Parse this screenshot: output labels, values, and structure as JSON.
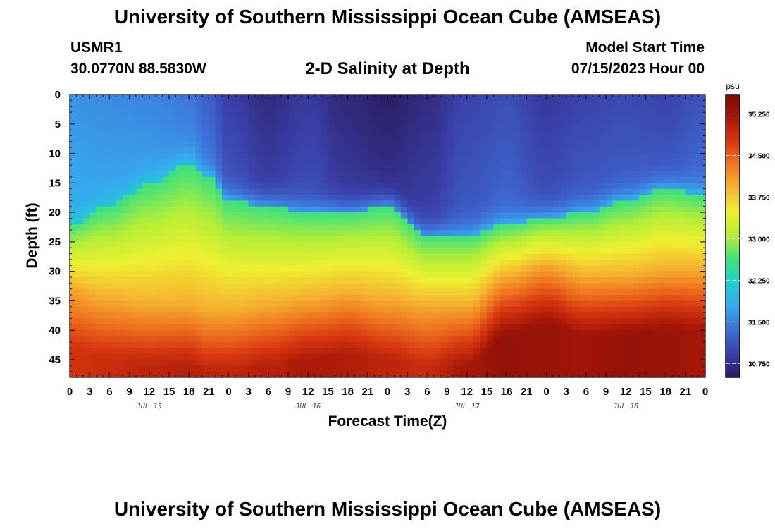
{
  "header": {
    "title": "University of Southern Mississippi Ocean Cube (AMSEAS)",
    "station": "USMR1",
    "coords": "30.0770N  88.5830W",
    "subtitle": "2-D Salinity at Depth",
    "start_label": "Model Start Time",
    "start_value": "07/15/2023 Hour 00"
  },
  "footer": {
    "title": "University of Southern Mississippi Ocean Cube (AMSEAS)"
  },
  "chart_data": {
    "type": "heatmap",
    "title": "2-D Salinity at Depth",
    "xlabel": "Forecast Time(Z)",
    "ylabel": "Depth (ft)",
    "x_range_hours": [
      0,
      96
    ],
    "x_tick_labels": [
      "0",
      "3",
      "6",
      "9",
      "12",
      "15",
      "18",
      "21",
      "0",
      "3",
      "6",
      "9",
      "12",
      "15",
      "18",
      "21",
      "0",
      "3",
      "6",
      "9",
      "12",
      "15",
      "18",
      "21",
      "0",
      "3",
      "6",
      "9",
      "12",
      "15",
      "18",
      "21",
      "0"
    ],
    "day_labels": [
      {
        "label": "JUL 15",
        "hour": 12
      },
      {
        "label": "JUL 16",
        "hour": 36
      },
      {
        "label": "JUL 17",
        "hour": 60
      },
      {
        "label": "JUL 18",
        "hour": 84
      }
    ],
    "y_ticks": [
      0,
      5,
      10,
      15,
      20,
      25,
      30,
      35,
      40,
      45
    ],
    "ylim": [
      0,
      48
    ],
    "colorbar": {
      "unit": "psu",
      "min": 30.5,
      "max": 35.6,
      "ticks": [
        "35.250",
        "34.500",
        "33.750",
        "33.000",
        "32.250",
        "31.500",
        "30.750"
      ],
      "colors": [
        "#2a1a5e",
        "#3a40a8",
        "#3f6fd8",
        "#36a8ee",
        "#1ed0d0",
        "#3ee07e",
        "#b4ee36",
        "#eef030",
        "#f5b830",
        "#f07820",
        "#d83810",
        "#a81808",
        "#7a0a05"
      ]
    },
    "profile_knots_hours": [
      0,
      6,
      12,
      18,
      21,
      24,
      30,
      36,
      42,
      48,
      54,
      60,
      66,
      72,
      78,
      84,
      90,
      96
    ],
    "halocline_depth_ft": [
      22,
      19,
      15,
      12,
      14,
      18,
      19,
      20,
      20,
      19,
      24,
      24,
      22,
      21,
      20,
      18,
      16,
      17
    ],
    "deep_layer_depth_ft": [
      33,
      35,
      36,
      36,
      37,
      37,
      36,
      35,
      34,
      35,
      36,
      36,
      31,
      29,
      31,
      31,
      30,
      30
    ],
    "surface_salinity_psu": [
      31.6,
      31.55,
      31.5,
      31.4,
      31.2,
      30.9,
      30.7,
      30.85,
      30.65,
      30.55,
      30.7,
      30.95,
      31.05,
      30.85,
      30.95,
      31.0,
      30.95,
      31.1
    ],
    "bottom_salinity_psu": [
      34.8,
      34.9,
      35.0,
      35.05,
      35.0,
      35.0,
      35.05,
      35.15,
      35.1,
      35.0,
      34.9,
      35.2,
      35.35,
      35.3,
      35.25,
      35.35,
      35.3,
      35.2
    ]
  }
}
